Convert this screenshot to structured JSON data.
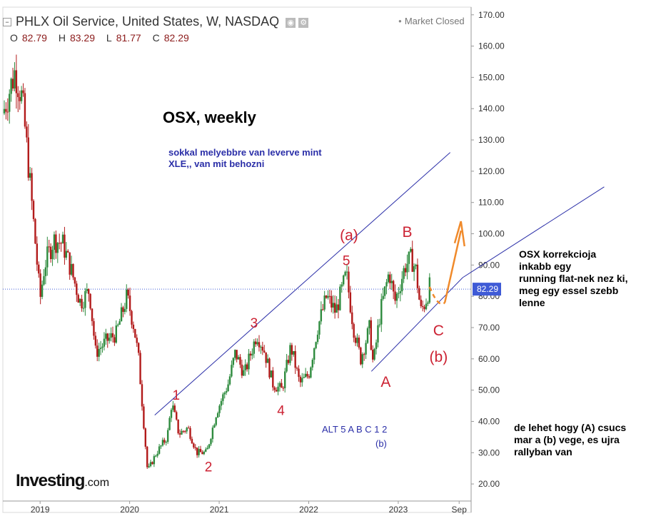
{
  "header": {
    "title": "PHLX Oil Service, United States, W, NASDAQ",
    "status": "Market Closed",
    "ohlc": [
      {
        "k": "O",
        "v": "82.79"
      },
      {
        "k": "H",
        "v": "83.29"
      },
      {
        "k": "L",
        "v": "81.77"
      },
      {
        "k": "C",
        "v": "82.29"
      }
    ]
  },
  "colors": {
    "up": "#2e8b3e",
    "down": "#b21a1a",
    "wave": "#cc2233",
    "channel": "#2b2fa8",
    "arrow": "#f08a2b",
    "price": "#3f5bd6"
  },
  "chart_data": {
    "type": "candlestick",
    "title": "OSX, weekly",
    "subtitle": "sokkal melyebbre van leverve mint XLE,, van mit behozni",
    "ylim": [
      15,
      172
    ],
    "y_ticks": [
      "20.00",
      "30.00",
      "40.00",
      "50.00",
      "60.00",
      "70.00",
      "80.00",
      "90.00",
      "100.00",
      "110.00",
      "120.00",
      "130.00",
      "140.00",
      "150.00",
      "160.00",
      "170.00"
    ],
    "x_ticks": [
      "2019",
      "2020",
      "2021",
      "2022",
      "2023",
      "Sep"
    ],
    "last_price": "82.29",
    "price_path": [
      {
        "t": 2018.6,
        "v": 140
      },
      {
        "t": 2018.72,
        "v": 152
      },
      {
        "t": 2018.8,
        "v": 143
      },
      {
        "t": 2018.86,
        "v": 125
      },
      {
        "t": 2018.95,
        "v": 96
      },
      {
        "t": 2019.0,
        "v": 79
      },
      {
        "t": 2019.05,
        "v": 90
      },
      {
        "t": 2019.15,
        "v": 98
      },
      {
        "t": 2019.25,
        "v": 97
      },
      {
        "t": 2019.33,
        "v": 90
      },
      {
        "t": 2019.45,
        "v": 78
      },
      {
        "t": 2019.55,
        "v": 82
      },
      {
        "t": 2019.62,
        "v": 62
      },
      {
        "t": 2019.75,
        "v": 66
      },
      {
        "t": 2019.85,
        "v": 68
      },
      {
        "t": 2019.97,
        "v": 80
      },
      {
        "t": 2020.05,
        "v": 70
      },
      {
        "t": 2020.1,
        "v": 60
      },
      {
        "t": 2020.2,
        "v": 24
      },
      {
        "t": 2020.3,
        "v": 30
      },
      {
        "t": 2020.42,
        "v": 35
      },
      {
        "t": 2020.47,
        "v": 46
      },
      {
        "t": 2020.55,
        "v": 36
      },
      {
        "t": 2020.65,
        "v": 38
      },
      {
        "t": 2020.75,
        "v": 30
      },
      {
        "t": 2020.86,
        "v": 30
      },
      {
        "t": 2020.97,
        "v": 43
      },
      {
        "t": 2021.1,
        "v": 52
      },
      {
        "t": 2021.18,
        "v": 62
      },
      {
        "t": 2021.28,
        "v": 55
      },
      {
        "t": 2021.42,
        "v": 68
      },
      {
        "t": 2021.5,
        "v": 63
      },
      {
        "t": 2021.6,
        "v": 52
      },
      {
        "t": 2021.7,
        "v": 50
      },
      {
        "t": 2021.8,
        "v": 64
      },
      {
        "t": 2021.9,
        "v": 52
      },
      {
        "t": 2022.0,
        "v": 55
      },
      {
        "t": 2022.1,
        "v": 70
      },
      {
        "t": 2022.2,
        "v": 80
      },
      {
        "t": 2022.3,
        "v": 75
      },
      {
        "t": 2022.42,
        "v": 87
      },
      {
        "t": 2022.5,
        "v": 70
      },
      {
        "t": 2022.58,
        "v": 60
      },
      {
        "t": 2022.68,
        "v": 70
      },
      {
        "t": 2022.72,
        "v": 58
      },
      {
        "t": 2022.8,
        "v": 75
      },
      {
        "t": 2022.9,
        "v": 88
      },
      {
        "t": 2022.96,
        "v": 78
      },
      {
        "t": 2023.08,
        "v": 90
      },
      {
        "t": 2023.15,
        "v": 92
      },
      {
        "t": 2023.2,
        "v": 88
      },
      {
        "t": 2023.25,
        "v": 75
      },
      {
        "t": 2023.3,
        "v": 78
      },
      {
        "t": 2023.35,
        "v": 83
      }
    ],
    "wave_labels": [
      {
        "text": "1",
        "t": 2020.52,
        "v": 47
      },
      {
        "text": "2",
        "t": 2020.88,
        "v": 24
      },
      {
        "text": "3",
        "t": 2021.39,
        "v": 70
      },
      {
        "text": "4",
        "t": 2021.69,
        "v": 42
      },
      {
        "text": "5",
        "t": 2022.42,
        "v": 90
      },
      {
        "text": "(a)",
        "t": 2022.45,
        "v": 98
      },
      {
        "text": "B",
        "t": 2023.1,
        "v": 99
      },
      {
        "text": "A",
        "t": 2022.86,
        "v": 51
      },
      {
        "text": "C",
        "t": 2023.45,
        "v": 67.5
      },
      {
        "text": "(b)",
        "t": 2023.45,
        "v": 59
      }
    ],
    "annotations": {
      "alt_line": "ALT 5  A  B  C      1 2",
      "alt_sub": "(b)"
    },
    "channel_lines": [
      {
        "t1": 2020.28,
        "v1": 42,
        "t2": 2023.58,
        "v2": 126
      },
      {
        "t1": 2022.7,
        "v1": 56,
        "t2": 2023.72,
        "v2": 86
      }
    ],
    "extended_line": {
      "t1": 2023.72,
      "v1": 86,
      "t2": 2025.3,
      "v2": 115
    }
  },
  "notes": {
    "right1": [
      "OSX korrekcioja",
      "inkabb egy",
      "running flat-nek nez ki,",
      "meg egy essel szebb",
      "lenne"
    ],
    "right2": [
      "de lehet hogy (A) csucs",
      "mar a (b) vege, es ujra",
      "rallyban van"
    ]
  },
  "brand": {
    "name": "Investing",
    "suffix": ".com"
  }
}
